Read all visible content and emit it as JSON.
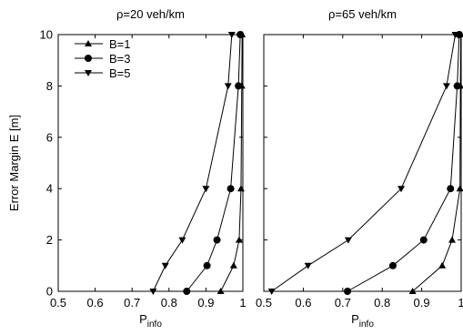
{
  "chart_data": [
    {
      "type": "line",
      "title": "ρ=20 veh/km",
      "xlabel_main": "P",
      "xlabel_sub": "info",
      "ylabel": "Error Margin E [m]",
      "xlim": [
        0.5,
        1.0
      ],
      "ylim": [
        0,
        10
      ],
      "xticks": [
        0.5,
        0.6,
        0.7,
        0.8,
        0.9,
        1.0
      ],
      "xtick_labels": [
        "0.5",
        "0.6",
        "0.7",
        "0.8",
        "0.9",
        "1"
      ],
      "yticks": [
        0,
        2,
        4,
        6,
        8,
        10
      ],
      "ytick_labels": [
        "0",
        "2",
        "4",
        "6",
        "8",
        "10"
      ],
      "grid": false,
      "legend_position": "top-left",
      "y": [
        0,
        1,
        2,
        4,
        8,
        10
      ],
      "series": [
        {
          "name": "B=1",
          "marker": "triangle-up",
          "x": [
            0.94,
            0.975,
            0.99,
            0.995,
            0.997,
            0.998
          ]
        },
        {
          "name": "B=3",
          "marker": "circle",
          "x": [
            0.848,
            0.903,
            0.93,
            0.967,
            0.988,
            0.993
          ]
        },
        {
          "name": "B=5",
          "marker": "triangle-down",
          "x": [
            0.757,
            0.79,
            0.836,
            0.9,
            0.96,
            0.97
          ]
        }
      ]
    },
    {
      "type": "line",
      "title": "ρ=65 veh/km",
      "xlabel_main": "P",
      "xlabel_sub": "info",
      "ylabel": "",
      "xlim": [
        0.5,
        1.0
      ],
      "ylim": [
        0,
        10
      ],
      "xticks": [
        0.5,
        0.6,
        0.7,
        0.8,
        0.9,
        1.0
      ],
      "xtick_labels": [
        "0.5",
        "0.6",
        "0.7",
        "0.8",
        "0.9",
        "1"
      ],
      "yticks": [
        0,
        2,
        4,
        6,
        8,
        10
      ],
      "ytick_labels": [],
      "grid": false,
      "y": [
        0,
        1,
        2,
        4,
        8,
        10
      ],
      "series": [
        {
          "name": "B=1",
          "marker": "triangle-up",
          "x": [
            0.877,
            0.952,
            0.977,
            0.997,
            0.998,
            0.999
          ]
        },
        {
          "name": "B=3",
          "marker": "circle",
          "x": [
            0.712,
            0.827,
            0.905,
            0.973,
            0.99,
            0.995
          ]
        },
        {
          "name": "B=5",
          "marker": "triangle-down",
          "x": [
            0.52,
            0.612,
            0.714,
            0.848,
            0.963,
            0.985
          ]
        }
      ]
    }
  ],
  "legend": [
    {
      "name": "B=1",
      "marker": "triangle-up"
    },
    {
      "name": "B=3",
      "marker": "circle"
    },
    {
      "name": "B=5",
      "marker": "triangle-down"
    }
  ]
}
